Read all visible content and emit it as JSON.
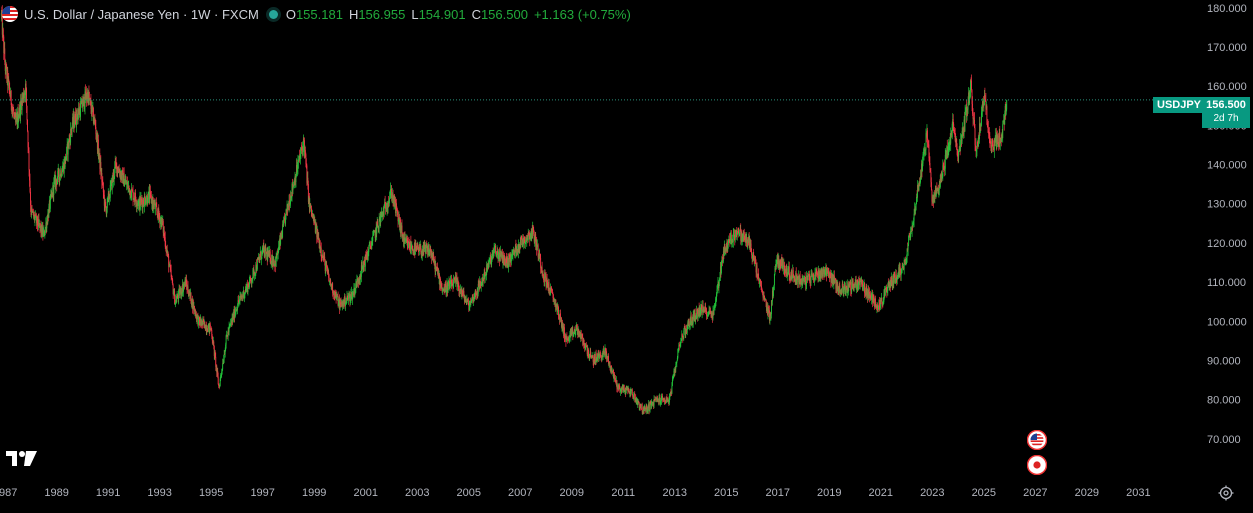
{
  "header": {
    "symbol_title": "U.S. Dollar / Japanese Yen · 1W · FXCM",
    "open_label": "O",
    "open_value": "155.181",
    "high_label": "H",
    "high_value": "156.955",
    "low_label": "L",
    "low_value": "154.901",
    "close_label": "C",
    "close_value": "156.500",
    "change": "+1.163 (+0.75%)"
  },
  "price_scale": {
    "tag_label": "USDJPY",
    "last_price": "156.500",
    "countdown": "2d 7h"
  },
  "colors": {
    "up": "#22c33a",
    "down": "#f23645",
    "axis_text": "#b2b5be",
    "background": "#000000",
    "last_price_bg": "#089981"
  },
  "icons": {
    "logo": "tradingview-logo-icon",
    "flag": "us-flag-icon",
    "event_us": "us-flag-event-icon",
    "event_jp": "japan-flag-event-icon",
    "settings": "settings-gear-icon"
  },
  "chart_data": {
    "type": "candlestick",
    "title": "U.S. Dollar / Japanese Yen · 1W · FXCM",
    "interval": "1W",
    "y_axis": {
      "side": "right",
      "ticks": [
        70,
        80,
        90,
        100,
        110,
        120,
        130,
        140,
        150,
        160,
        170,
        180
      ],
      "tick_labels": [
        "70.000",
        "80.000",
        "90.000",
        "100.000",
        "110.000",
        "120.000",
        "130.000",
        "140.000",
        "150.000",
        "160.000",
        "170.000",
        "180.000"
      ],
      "range": [
        60,
        182
      ]
    },
    "x_axis": {
      "tick_labels": [
        "1987",
        "1989",
        "1991",
        "1993",
        "1995",
        "1997",
        "1999",
        "2001",
        "2003",
        "2005",
        "2007",
        "2009",
        "2011",
        "2013",
        "2015",
        "2017",
        "2019",
        "2021",
        "2023",
        "2025",
        "2027",
        "2029",
        "2031"
      ],
      "range_years": [
        1986.8,
        2033.2
      ]
    },
    "last_close": 156.5,
    "price_path": [
      [
        1986.85,
        178
      ],
      [
        1987.0,
        165
      ],
      [
        1987.4,
        150
      ],
      [
        1987.8,
        160
      ],
      [
        1988.0,
        128
      ],
      [
        1988.5,
        122
      ],
      [
        1988.9,
        135
      ],
      [
        1989.3,
        140
      ],
      [
        1989.6,
        150
      ],
      [
        1990.2,
        158
      ],
      [
        1990.5,
        150
      ],
      [
        1990.9,
        128
      ],
      [
        1991.3,
        140
      ],
      [
        1991.7,
        135
      ],
      [
        1992.2,
        130
      ],
      [
        1992.6,
        132
      ],
      [
        1993.1,
        125
      ],
      [
        1993.6,
        105
      ],
      [
        1994.0,
        110
      ],
      [
        1994.5,
        100
      ],
      [
        1995.0,
        98
      ],
      [
        1995.3,
        83
      ],
      [
        1995.6,
        96
      ],
      [
        1996.0,
        104
      ],
      [
        1996.5,
        110
      ],
      [
        1997.0,
        118
      ],
      [
        1997.5,
        115
      ],
      [
        1998.0,
        130
      ],
      [
        1998.6,
        146
      ],
      [
        1998.8,
        130
      ],
      [
        1999.2,
        120
      ],
      [
        1999.6,
        110
      ],
      [
        2000.0,
        104
      ],
      [
        2000.5,
        107
      ],
      [
        2001.0,
        116
      ],
      [
        2001.5,
        125
      ],
      [
        2002.0,
        133
      ],
      [
        2002.5,
        120
      ],
      [
        2003.0,
        118
      ],
      [
        2003.5,
        118
      ],
      [
        2004.0,
        108
      ],
      [
        2004.5,
        110
      ],
      [
        2005.0,
        104
      ],
      [
        2005.5,
        110
      ],
      [
        2006.0,
        118
      ],
      [
        2006.5,
        115
      ],
      [
        2007.0,
        120
      ],
      [
        2007.5,
        123
      ],
      [
        2007.9,
        112
      ],
      [
        2008.4,
        104
      ],
      [
        2008.8,
        95
      ],
      [
        2009.2,
        98
      ],
      [
        2009.8,
        90
      ],
      [
        2010.3,
        92
      ],
      [
        2010.8,
        83
      ],
      [
        2011.3,
        82
      ],
      [
        2011.8,
        77
      ],
      [
        2012.3,
        80
      ],
      [
        2012.8,
        80
      ],
      [
        2013.2,
        95
      ],
      [
        2013.6,
        100
      ],
      [
        2014.0,
        103
      ],
      [
        2014.5,
        102
      ],
      [
        2014.9,
        118
      ],
      [
        2015.4,
        123
      ],
      [
        2015.9,
        120
      ],
      [
        2016.4,
        107
      ],
      [
        2016.7,
        101
      ],
      [
        2016.95,
        116
      ],
      [
        2017.5,
        112
      ],
      [
        2018.0,
        110
      ],
      [
        2018.5,
        112
      ],
      [
        2018.9,
        113
      ],
      [
        2019.4,
        108
      ],
      [
        2019.9,
        109
      ],
      [
        2020.2,
        110
      ],
      [
        2020.6,
        106
      ],
      [
        2020.95,
        104
      ],
      [
        2021.4,
        110
      ],
      [
        2021.9,
        114
      ],
      [
        2022.3,
        128
      ],
      [
        2022.8,
        148
      ],
      [
        2023.0,
        130
      ],
      [
        2023.4,
        138
      ],
      [
        2023.8,
        150
      ],
      [
        2024.0,
        142
      ],
      [
        2024.5,
        160
      ],
      [
        2024.7,
        143
      ],
      [
        2025.0,
        157
      ],
      [
        2025.3,
        145
      ],
      [
        2025.7,
        147
      ],
      [
        2025.9,
        156.5
      ]
    ]
  }
}
